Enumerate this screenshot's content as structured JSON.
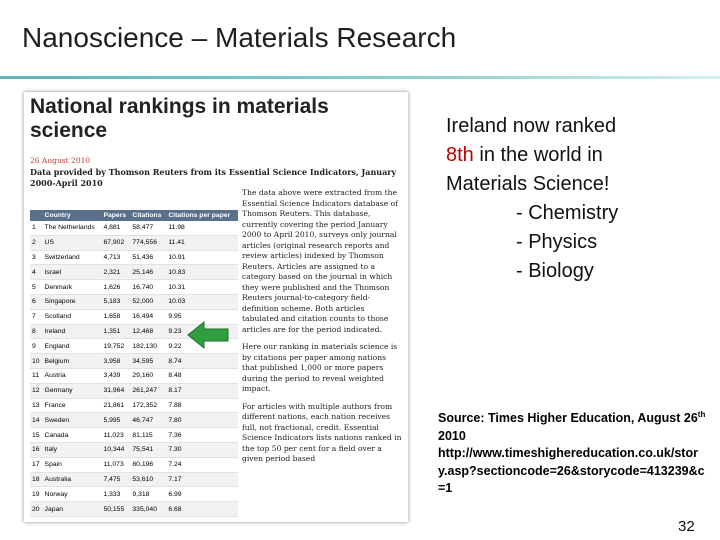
{
  "slide": {
    "title": "Nanoscience – Materials Research",
    "page_number": "32"
  },
  "clipping": {
    "heading": "National rankings in materials science",
    "date": "26 August 2010",
    "provider": "Data provided by Thomson Reuters from its Essential Science Indicators, January 2000-April 2010",
    "table": {
      "headers": [
        "",
        "Country",
        "Papers",
        "Citations",
        "Citations per paper"
      ],
      "rows": [
        [
          "1",
          "The Netherlands",
          "4,881",
          "58,477",
          "11.98"
        ],
        [
          "2",
          "US",
          "67,902",
          "774,556",
          "11.41"
        ],
        [
          "3",
          "Switzerland",
          "4,713",
          "51,436",
          "10.91"
        ],
        [
          "4",
          "Israel",
          "2,321",
          "25,146",
          "10.83"
        ],
        [
          "5",
          "Denmark",
          "1,626",
          "16,740",
          "10.31"
        ],
        [
          "6",
          "Singapore",
          "5,183",
          "52,000",
          "10.03"
        ],
        [
          "7",
          "Scotland",
          "1,658",
          "16,494",
          "9.95"
        ],
        [
          "8",
          "Ireland",
          "1,351",
          "12,468",
          "9.23"
        ],
        [
          "9",
          "England",
          "19,752",
          "182,130",
          "9.22"
        ],
        [
          "10",
          "Belgium",
          "3,958",
          "34,595",
          "8.74"
        ],
        [
          "11",
          "Austria",
          "3,439",
          "29,160",
          "8.48"
        ],
        [
          "12",
          "Germany",
          "31,964",
          "261,247",
          "8.17"
        ],
        [
          "13",
          "France",
          "21,861",
          "172,352",
          "7.88"
        ],
        [
          "14",
          "Sweden",
          "5,995",
          "46,747",
          "7.80"
        ],
        [
          "15",
          "Canada",
          "11,023",
          "81,115",
          "7.36"
        ],
        [
          "16",
          "Italy",
          "10,344",
          "75,541",
          "7.30"
        ],
        [
          "17",
          "Spain",
          "11,073",
          "80,196",
          "7.24"
        ],
        [
          "18",
          "Australia",
          "7,475",
          "53,610",
          "7.17"
        ],
        [
          "19",
          "Norway",
          "1,333",
          "9,318",
          "6.99"
        ],
        [
          "20",
          "Japan",
          "50,155",
          "335,040",
          "6.68"
        ]
      ]
    },
    "paragraphs": [
      "The data above were extracted from the Essential Science Indicators database of Thomson Reuters. This database, currently covering the period January 2000 to April 2010, surveys only journal articles (original research reports and review articles) indexed by Thomson Reuters. Articles are assigned to a category based on the journal in which they were published and the Thomson Reuters journal-to-category field-definition scheme. Both articles tabulated and citation counts to those articles are for the period indicated.",
      "Here our ranking in materials science is by citations per paper among nations that published 1,000 or more papers during the period to reveal weighted impact.",
      "For articles with multiple authors from different nations, each nation receives full, not fractional, credit. Essential Science Indicators lists nations ranked in the top 50 per cent for a field over a given period based"
    ],
    "arrow_icon": "green-arrow-left-icon",
    "arrow_color": "#2e9e3e"
  },
  "bullets": {
    "line1": "Ireland now ranked",
    "rank": "8th",
    "line2_rest": " in the world in",
    "line3": "Materials Science!",
    "items": [
      "- Chemistry",
      "- Physics",
      "- Biology"
    ],
    "highlight_color": "#c00000"
  },
  "source": {
    "label": "Source: Times Higher Education, August 26",
    "sup": "th",
    "year": " 2010",
    "url": "http://www.timeshighereducation.co.uk/story.asp?sectioncode=26&storycode=413239&c=1"
  }
}
